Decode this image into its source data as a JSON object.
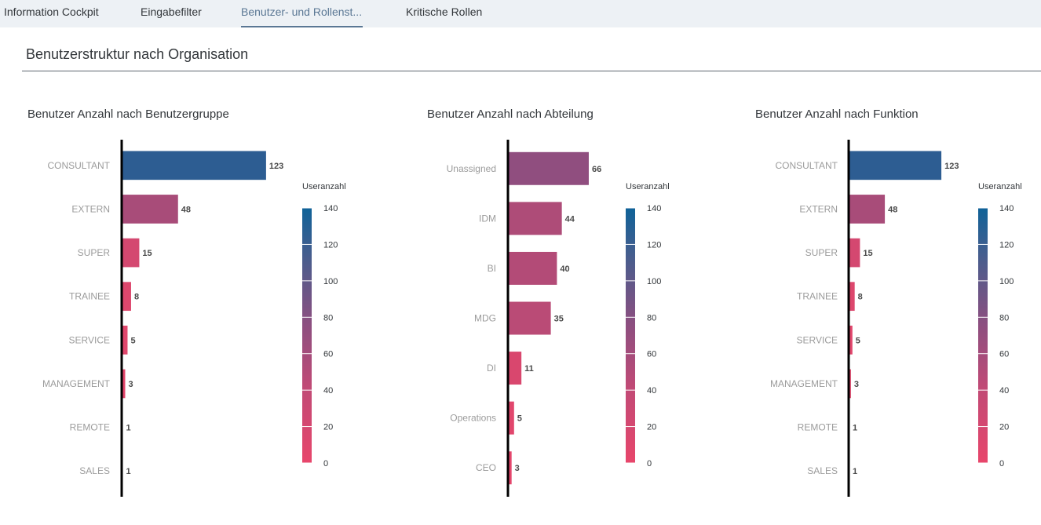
{
  "tabs": [
    {
      "label": "Information Cockpit",
      "active": false
    },
    {
      "label": "Eingabefilter",
      "active": false
    },
    {
      "label": "Benutzer- und Rollenst...",
      "active": true
    },
    {
      "label": "Kritische Rollen",
      "active": false
    }
  ],
  "section_title": "Benutzerstruktur nach Organisation",
  "colors": {
    "scale_low": "#e8466b",
    "scale_high": "#0f6298",
    "axis": "#000000"
  },
  "chart_data": [
    {
      "type": "bar",
      "orientation": "horizontal",
      "title": "Benutzer Anzahl nach Benutzergruppe",
      "categories": [
        "CONSULTANT",
        "EXTERN",
        "SUPER",
        "TRAINEE",
        "SERVICE",
        "MANAGEMENT",
        "REMOTE",
        "SALES"
      ],
      "values": [
        123,
        48,
        15,
        8,
        5,
        3,
        1,
        1
      ],
      "legend": {
        "title": "Useranzahl",
        "min": 0,
        "max": 140,
        "ticks": [
          140,
          120,
          100,
          80,
          60,
          40,
          20,
          0
        ]
      }
    },
    {
      "type": "bar",
      "orientation": "horizontal",
      "title": "Benutzer Anzahl nach Abteilung",
      "categories": [
        "Unassigned",
        "IDM",
        "BI",
        "MDG",
        "DI",
        "Operations",
        "CEO"
      ],
      "values": [
        66,
        44,
        40,
        35,
        11,
        5,
        3
      ],
      "legend": {
        "title": "Useranzahl",
        "min": 0,
        "max": 140,
        "ticks": [
          140,
          120,
          100,
          80,
          60,
          40,
          20,
          0
        ]
      }
    },
    {
      "type": "bar",
      "orientation": "horizontal",
      "title": "Benutzer Anzahl nach Funktion",
      "categories": [
        "CONSULTANT",
        "EXTERN",
        "SUPER",
        "TRAINEE",
        "SERVICE",
        "MANAGEMENT",
        "REMOTE",
        "SALES"
      ],
      "values": [
        123,
        48,
        15,
        8,
        5,
        3,
        1,
        1
      ],
      "legend": {
        "title": "Useranzahl",
        "min": 0,
        "max": 140,
        "ticks": [
          140,
          120,
          100,
          80,
          60,
          40,
          20,
          0
        ]
      }
    }
  ]
}
